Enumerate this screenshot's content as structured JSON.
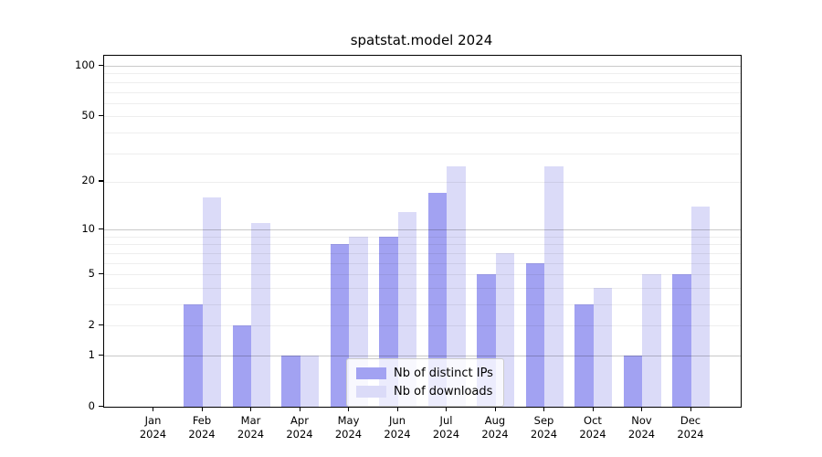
{
  "chart_data": {
    "type": "bar",
    "title": "spatstat.model 2024",
    "categories": [
      "Jan 2024",
      "Feb 2024",
      "Mar 2024",
      "Apr 2024",
      "May 2024",
      "Jun 2024",
      "Jul 2024",
      "Aug 2024",
      "Sep 2024",
      "Oct 2024",
      "Nov 2024",
      "Dec 2024"
    ],
    "series": [
      {
        "name": "Nb of distinct IPs",
        "color": "#a2a2f2",
        "values": [
          0,
          3,
          2,
          1,
          8,
          9,
          17,
          5,
          6,
          3,
          1,
          5
        ]
      },
      {
        "name": "Nb of downloads",
        "color": "#dbdbf8",
        "values": [
          0,
          16,
          11,
          1,
          9,
          13,
          25,
          7,
          25,
          4,
          5,
          14
        ]
      }
    ],
    "xlabel": "",
    "ylabel": "",
    "yscale": "log1p",
    "ylim": [
      0,
      100
    ],
    "yticks": [
      0,
      1,
      2,
      5,
      10,
      20,
      50,
      100
    ],
    "major_gridlines": [
      1,
      10,
      100
    ],
    "minor_gridlines": [
      2,
      3,
      4,
      5,
      6,
      7,
      8,
      9,
      20,
      30,
      40,
      50,
      60,
      70,
      80,
      90
    ],
    "grid": true,
    "legend_position": "lower center"
  }
}
